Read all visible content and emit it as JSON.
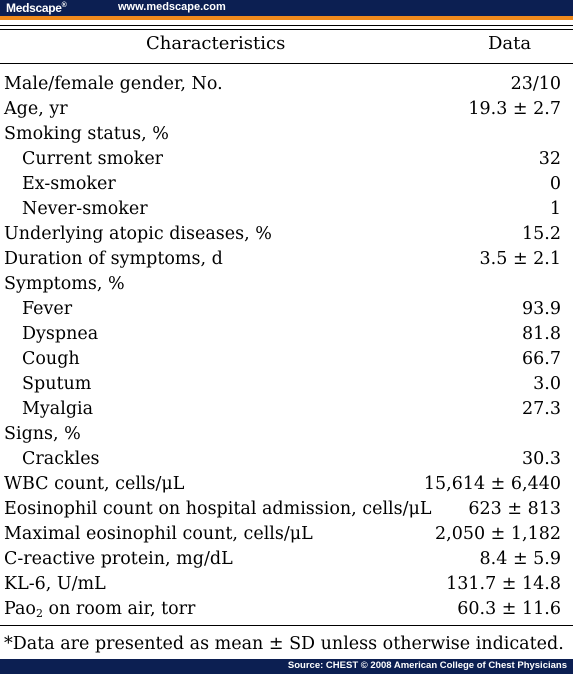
{
  "header": {
    "brand": "Medscape",
    "brand_mark": "®",
    "url": "www.medscape.com"
  },
  "table": {
    "columns": [
      "Characteristics",
      "Data"
    ],
    "rows": [
      {
        "label": "Male/female gender, No.",
        "value": "23/10",
        "indent": false
      },
      {
        "label": "Age, yr",
        "value": "19.3 ± 2.7",
        "indent": false
      },
      {
        "label": "Smoking status, %",
        "value": "",
        "indent": false
      },
      {
        "label": "Current smoker",
        "value": "32",
        "indent": true
      },
      {
        "label": "Ex-smoker",
        "value": "0",
        "indent": true
      },
      {
        "label": "Never-smoker",
        "value": "1",
        "indent": true
      },
      {
        "label": "Underlying atopic diseases, %",
        "value": "15.2",
        "indent": false
      },
      {
        "label": "Duration of symptoms, d",
        "value": "3.5 ± 2.1",
        "indent": false
      },
      {
        "label": "Symptoms, %",
        "value": "",
        "indent": false
      },
      {
        "label": "Fever",
        "value": "93.9",
        "indent": true
      },
      {
        "label": "Dyspnea",
        "value": "81.8",
        "indent": true
      },
      {
        "label": "Cough",
        "value": "66.7",
        "indent": true
      },
      {
        "label": "Sputum",
        "value": "3.0",
        "indent": true
      },
      {
        "label": "Myalgia",
        "value": "27.3",
        "indent": true
      },
      {
        "label": "Signs, %",
        "value": "",
        "indent": false
      },
      {
        "label": "Crackles",
        "value": "30.3",
        "indent": true
      },
      {
        "label": "WBC count, cells/μL",
        "value": "15,614 ± 6,440",
        "indent": false
      },
      {
        "label": "Eosinophil count on hospital admission, cells/μL",
        "value": "623 ± 813",
        "indent": false
      },
      {
        "label": "Maximal eosinophil count, cells/μL",
        "value": "2,050 ± 1,182",
        "indent": false
      },
      {
        "label": "C-reactive protein, mg/dL",
        "value": "8.4 ± 5.9",
        "indent": false
      },
      {
        "label": "KL-6, U/mL",
        "value": "131.7 ± 14.8",
        "indent": false
      },
      {
        "label": "Pao",
        "label_sub": "2",
        "label_after": " on room air, torr",
        "value": "60.3 ± 11.6",
        "indent": false
      }
    ]
  },
  "footnote": "*Data are presented as mean ± SD unless otherwise indicated.",
  "footer": {
    "source": "Source: CHEST © 2008 American College of Chest Physicians"
  },
  "colors": {
    "bar_navy": "#0c1f52",
    "bar_orange": "#f08a1c"
  }
}
